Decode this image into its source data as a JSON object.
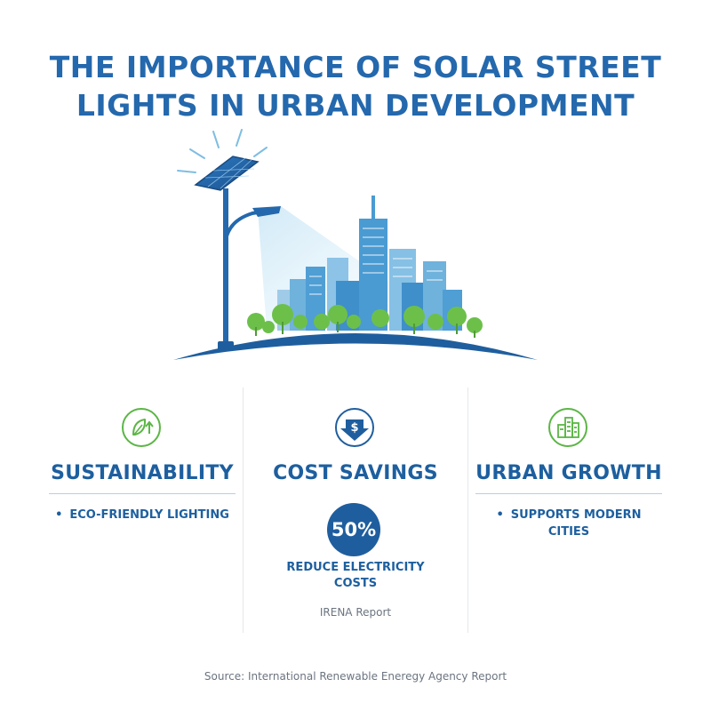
{
  "title": {
    "line1": "THE IMPORTANCE OF SOLAR STREET",
    "line2": "LIGHTS IN URBAN DEVELOPMENT"
  },
  "colors": {
    "primary": "#1d5f9f",
    "title": "#2468ad",
    "green": "#5bb645",
    "badge": "#1f5e9e",
    "muted": "#6b7480"
  },
  "columns": [
    {
      "icon": "leaf-arrow-icon",
      "title": "SUSTAINABILITY",
      "bullet": "ECO-FRIENDLY LIGHTING"
    },
    {
      "icon": "dollar-down-icon",
      "title": "COST SAVINGS",
      "badge": "50%",
      "desc_line1": "REDUCE ELECTRICITY",
      "desc_line2": "COSTS",
      "ref": "IRENA Report"
    },
    {
      "icon": "city-buildings-icon",
      "title": "URBAN GROWTH",
      "bullet_line1": "SUPPORTS MODERN",
      "bullet_line2": "CITIES"
    }
  ],
  "source": "Source: International Renewable Eneregy Agency Report"
}
